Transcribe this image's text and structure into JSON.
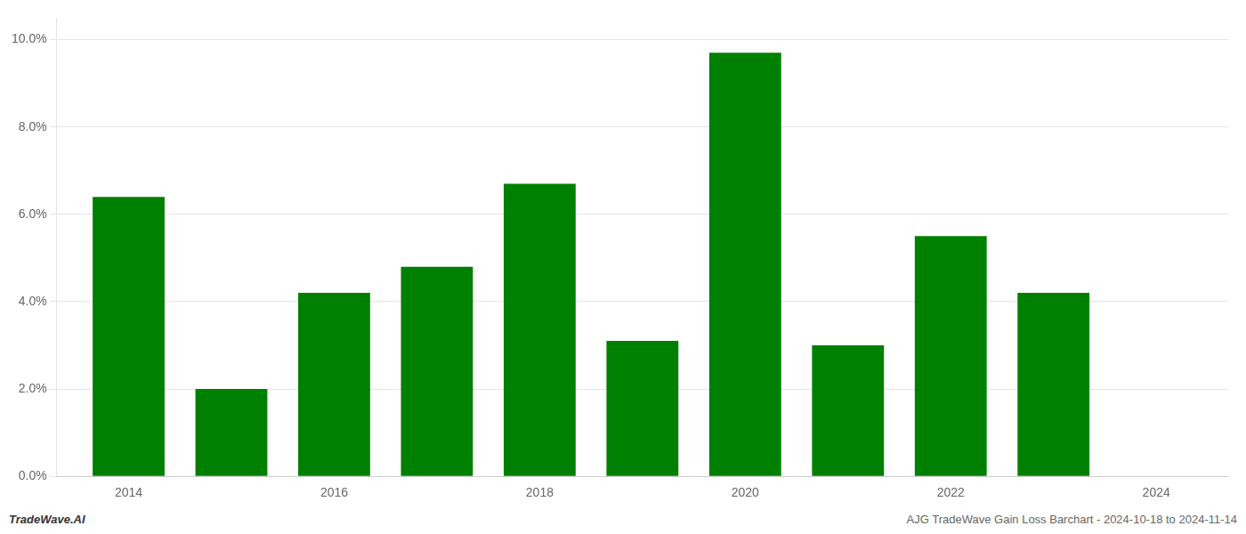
{
  "chart_data": {
    "type": "bar",
    "x": [
      2014,
      2015,
      2016,
      2017,
      2018,
      2019,
      2020,
      2021,
      2022,
      2023
    ],
    "values": [
      0.064,
      0.02,
      0.042,
      0.048,
      0.067,
      0.031,
      0.097,
      0.03,
      0.055,
      0.042
    ],
    "color": "#008000",
    "xlim": [
      2013.3,
      2024.7
    ],
    "xticks": [
      2014,
      2016,
      2018,
      2020,
      2022,
      2024
    ],
    "ylim": [
      0,
      0.105
    ],
    "yticks": [
      {
        "value": 0.0,
        "label": "0.0%"
      },
      {
        "value": 0.02,
        "label": "2.0%"
      },
      {
        "value": 0.04,
        "label": "4.0%"
      },
      {
        "value": 0.06,
        "label": "6.0%"
      },
      {
        "value": 0.08,
        "label": "8.0%"
      },
      {
        "value": 0.1,
        "label": "10.0%"
      }
    ],
    "grid": "y",
    "annotations": [
      "TradeWave.AI",
      "AJG TradeWave Gain Loss Barchart - 2024-10-18 to 2024-11-14"
    ]
  }
}
